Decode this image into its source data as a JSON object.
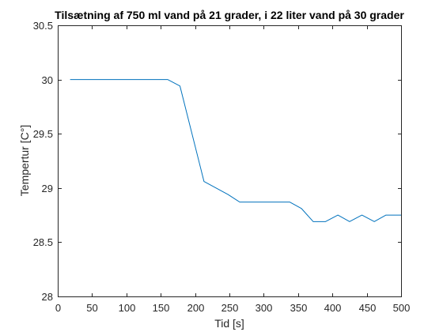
{
  "chart_data": {
    "type": "line",
    "title": "Tilsætning af 750 ml vand på 21 grader, i 22 liter vand på 30 grader",
    "xlabel": "Tid [s]",
    "ylabel": "Tempertur [C°]",
    "xlim": [
      0,
      500
    ],
    "ylim": [
      28,
      30.5
    ],
    "x_ticks": [
      0,
      50,
      100,
      150,
      200,
      250,
      300,
      350,
      400,
      450,
      500
    ],
    "x_tick_labels": [
      "0",
      "50",
      "100",
      "150",
      "200",
      "250",
      "300",
      "350",
      "400",
      "450",
      "500"
    ],
    "y_ticks": [
      28,
      28.5,
      29,
      29.5,
      30,
      30.5
    ],
    "y_tick_labels": [
      "28",
      "28.5",
      "29",
      "29.5",
      "30",
      "30.5"
    ],
    "grid": false,
    "box": true,
    "series": [
      {
        "color": "#0072bd",
        "x": [
          18,
          160,
          178,
          213,
          248,
          265,
          283,
          300,
          320,
          338,
          355,
          372,
          390,
          408,
          425,
          443,
          461,
          478,
          500
        ],
        "y": [
          30.0,
          30.0,
          29.94,
          29.06,
          28.94,
          28.87,
          28.87,
          28.87,
          28.87,
          28.87,
          28.81,
          28.69,
          28.69,
          28.75,
          28.69,
          28.75,
          28.69,
          28.75,
          28.75
        ]
      }
    ]
  }
}
